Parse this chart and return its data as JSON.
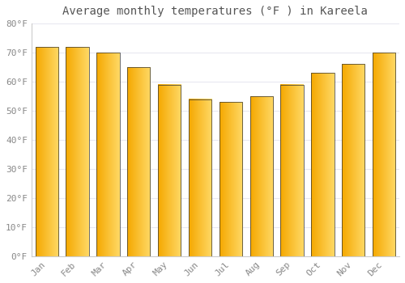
{
  "title": "Average monthly temperatures (°F ) in Kareela",
  "months": [
    "Jan",
    "Feb",
    "Mar",
    "Apr",
    "May",
    "Jun",
    "Jul",
    "Aug",
    "Sep",
    "Oct",
    "Nov",
    "Dec"
  ],
  "values": [
    72,
    72,
    70,
    65,
    59,
    54,
    53,
    55,
    59,
    63,
    66,
    70
  ],
  "bar_color_left": "#F5A800",
  "bar_color_right": "#FFD966",
  "bar_edge_color": "#333333",
  "background_color": "#FFFFFF",
  "plot_bg_color": "#FFFFFF",
  "grid_color": "#E8E8F0",
  "ylim": [
    0,
    80
  ],
  "yticks": [
    0,
    10,
    20,
    30,
    40,
    50,
    60,
    70,
    80
  ],
  "ytick_labels": [
    "0°F",
    "10°F",
    "20°F",
    "30°F",
    "40°F",
    "50°F",
    "60°F",
    "70°F",
    "80°F"
  ],
  "tick_color": "#888888",
  "label_fontsize": 8,
  "title_fontsize": 10,
  "title_color": "#555555"
}
